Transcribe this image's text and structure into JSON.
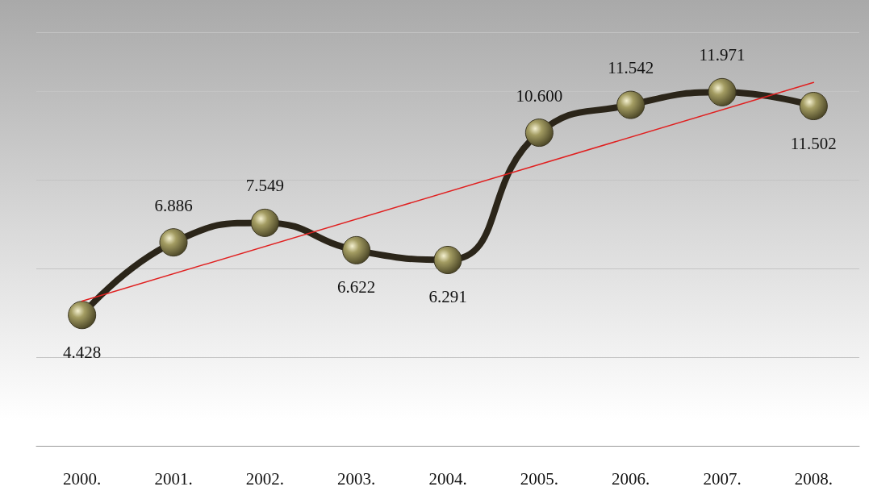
{
  "chart_data": {
    "type": "line",
    "categories": [
      "2000.",
      "2001.",
      "2002.",
      "2003.",
      "2004.",
      "2005.",
      "2006.",
      "2007.",
      "2008."
    ],
    "series": [
      {
        "color": "#2b2519",
        "values": [
          4.428,
          6.886,
          7.549,
          6.622,
          6.291,
          10.6,
          11.542,
          11.971,
          11.502
        ],
        "value_labels": [
          "4.428",
          "6.886",
          "7.549",
          "6.622",
          "6.291",
          "10.600",
          "11.542",
          "11.971",
          "11.502"
        ],
        "marker": "circle"
      },
      {
        "type": "line",
        "color": "#e02020",
        "x": [
          "2000.",
          "2008."
        ],
        "values": [
          4.899,
          12.299
        ],
        "marker": "none"
      }
    ],
    "ylim": [
      0,
      14
    ],
    "grid": "y",
    "tick_labels": "x"
  }
}
